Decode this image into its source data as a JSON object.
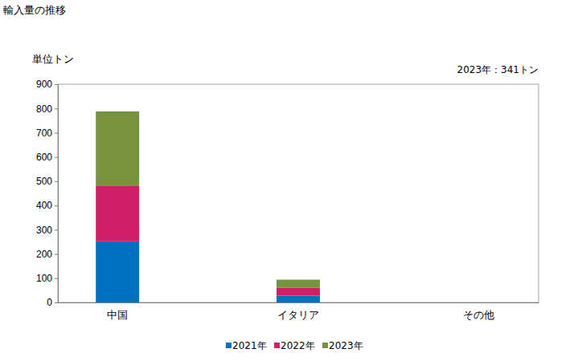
{
  "chart_data": {
    "type": "bar",
    "title": "輸入量の推移",
    "y_label": "単位トン",
    "annotation": "2023年：341トン",
    "categories": [
      "中国",
      "イタリア",
      "その他"
    ],
    "series": [
      {
        "name": "2021年",
        "color": "#0070c0",
        "values": [
          252,
          28,
          0
        ]
      },
      {
        "name": "2022年",
        "color": "#d01f66",
        "values": [
          228,
          33,
          0
        ]
      },
      {
        "name": "2023年",
        "color": "#77933c",
        "values": [
          308,
          33,
          0
        ]
      }
    ],
    "stacked": true,
    "grid": false,
    "legend": "bottom",
    "ylim": [
      0,
      900
    ],
    "yticks": [
      0,
      100,
      200,
      300,
      400,
      500,
      600,
      700,
      800,
      900
    ]
  }
}
